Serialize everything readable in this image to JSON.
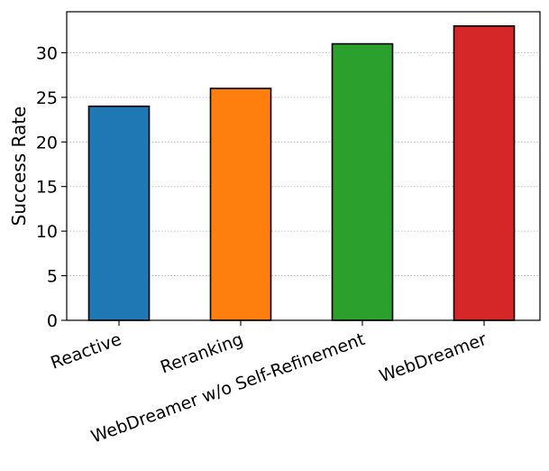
{
  "chart_data": {
    "type": "bar",
    "title": "",
    "xlabel": "",
    "ylabel": "Success Rate",
    "categories": [
      "Reactive",
      "Reranking",
      "WebDreamer w/o Self-Refinement",
      "WebDreamer"
    ],
    "values": [
      24,
      26,
      31,
      33
    ],
    "colors": [
      "#1f77b4",
      "#ff7f0e",
      "#2ca02c",
      "#d62728"
    ],
    "bar_edge_color": "#000000",
    "ylim": [
      0,
      34.6
    ],
    "yticks": [
      0,
      5,
      10,
      15,
      20,
      25,
      30
    ],
    "grid": {
      "y": true,
      "style": "dotted",
      "color": "#b0b0b0"
    },
    "xtick_rotation_deg": -20
  }
}
